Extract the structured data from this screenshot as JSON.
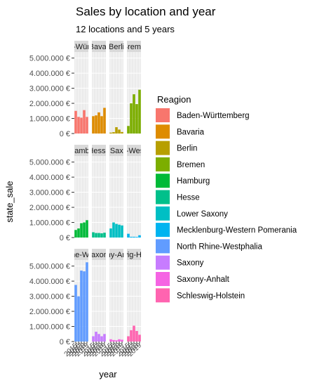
{
  "chart_data": {
    "type": "bar",
    "title": "Sales by location and year",
    "subtitle": "12 locations and 5 years",
    "xlabel": "year",
    "ylabel": "state_sale",
    "ylim": [
      0,
      5400000
    ],
    "y_ticks": [
      0,
      1000000,
      2000000,
      3000000,
      4000000,
      5000000
    ],
    "y_tick_labels": [
      "0 €",
      "1.000.000 €",
      "2.000.000 €",
      "3.000.000 €",
      "4.000.000 €",
      "5.000.000 €"
    ],
    "x_tick_labels": [
      "2015",
      "2016",
      "2017",
      "2018",
      "2019"
    ],
    "facet_strip_labels": [
      "n-Württ",
      "Bavar",
      "Berli",
      "Breme",
      "Hambu",
      "Hesse",
      "r Saxo",
      "n-West",
      "ine-We",
      "Saxony",
      "ony-Anh",
      "wig-Ho"
    ],
    "legend_title": "Reagion",
    "legend_position": "right",
    "series": [
      {
        "name": "Baden-Württemberg",
        "color": "#F8766D",
        "values": [
          1500000,
          1100000,
          1050000,
          1550000,
          1100000
        ]
      },
      {
        "name": "Bavaria",
        "color": "#DE8C00",
        "values": [
          1150000,
          1200000,
          1400000,
          1150000,
          1700000
        ]
      },
      {
        "name": "Berlin",
        "color": "#B79F00",
        "values": [
          60000,
          90000,
          420000,
          260000,
          100000
        ]
      },
      {
        "name": "Bremen",
        "color": "#7CAE00",
        "values": [
          500000,
          2000000,
          2600000,
          1950000,
          2900000
        ]
      },
      {
        "name": "Hamburg",
        "color": "#00BA38",
        "values": [
          500000,
          600000,
          950000,
          1000000,
          1150000
        ]
      },
      {
        "name": "Hesse",
        "color": "#00C08B",
        "values": [
          350000,
          300000,
          300000,
          280000,
          320000
        ]
      },
      {
        "name": "Lower Saxony",
        "color": "#00BFC4",
        "values": [
          600000,
          1000000,
          900000,
          850000,
          800000
        ]
      },
      {
        "name": "Mecklenburg-Western Pomerania",
        "color": "#00B4F0",
        "values": [
          250000,
          50000,
          50000,
          40000,
          150000
        ]
      },
      {
        "name": "North Rhine-Westphalia",
        "color": "#619CFF",
        "values": [
          3750000,
          3000000,
          4700000,
          4650000,
          5250000
        ]
      },
      {
        "name": "Saxony",
        "color": "#C77CFF",
        "values": [
          350000,
          650000,
          500000,
          350000,
          500000
        ]
      },
      {
        "name": "Saxony-Anhalt",
        "color": "#F564E3",
        "values": [
          150000,
          100000,
          80000,
          150000,
          120000
        ]
      },
      {
        "name": "Schleswig-Holstein",
        "color": "#FF64B0",
        "values": [
          350000,
          750000,
          1050000,
          700000,
          450000
        ]
      }
    ]
  }
}
